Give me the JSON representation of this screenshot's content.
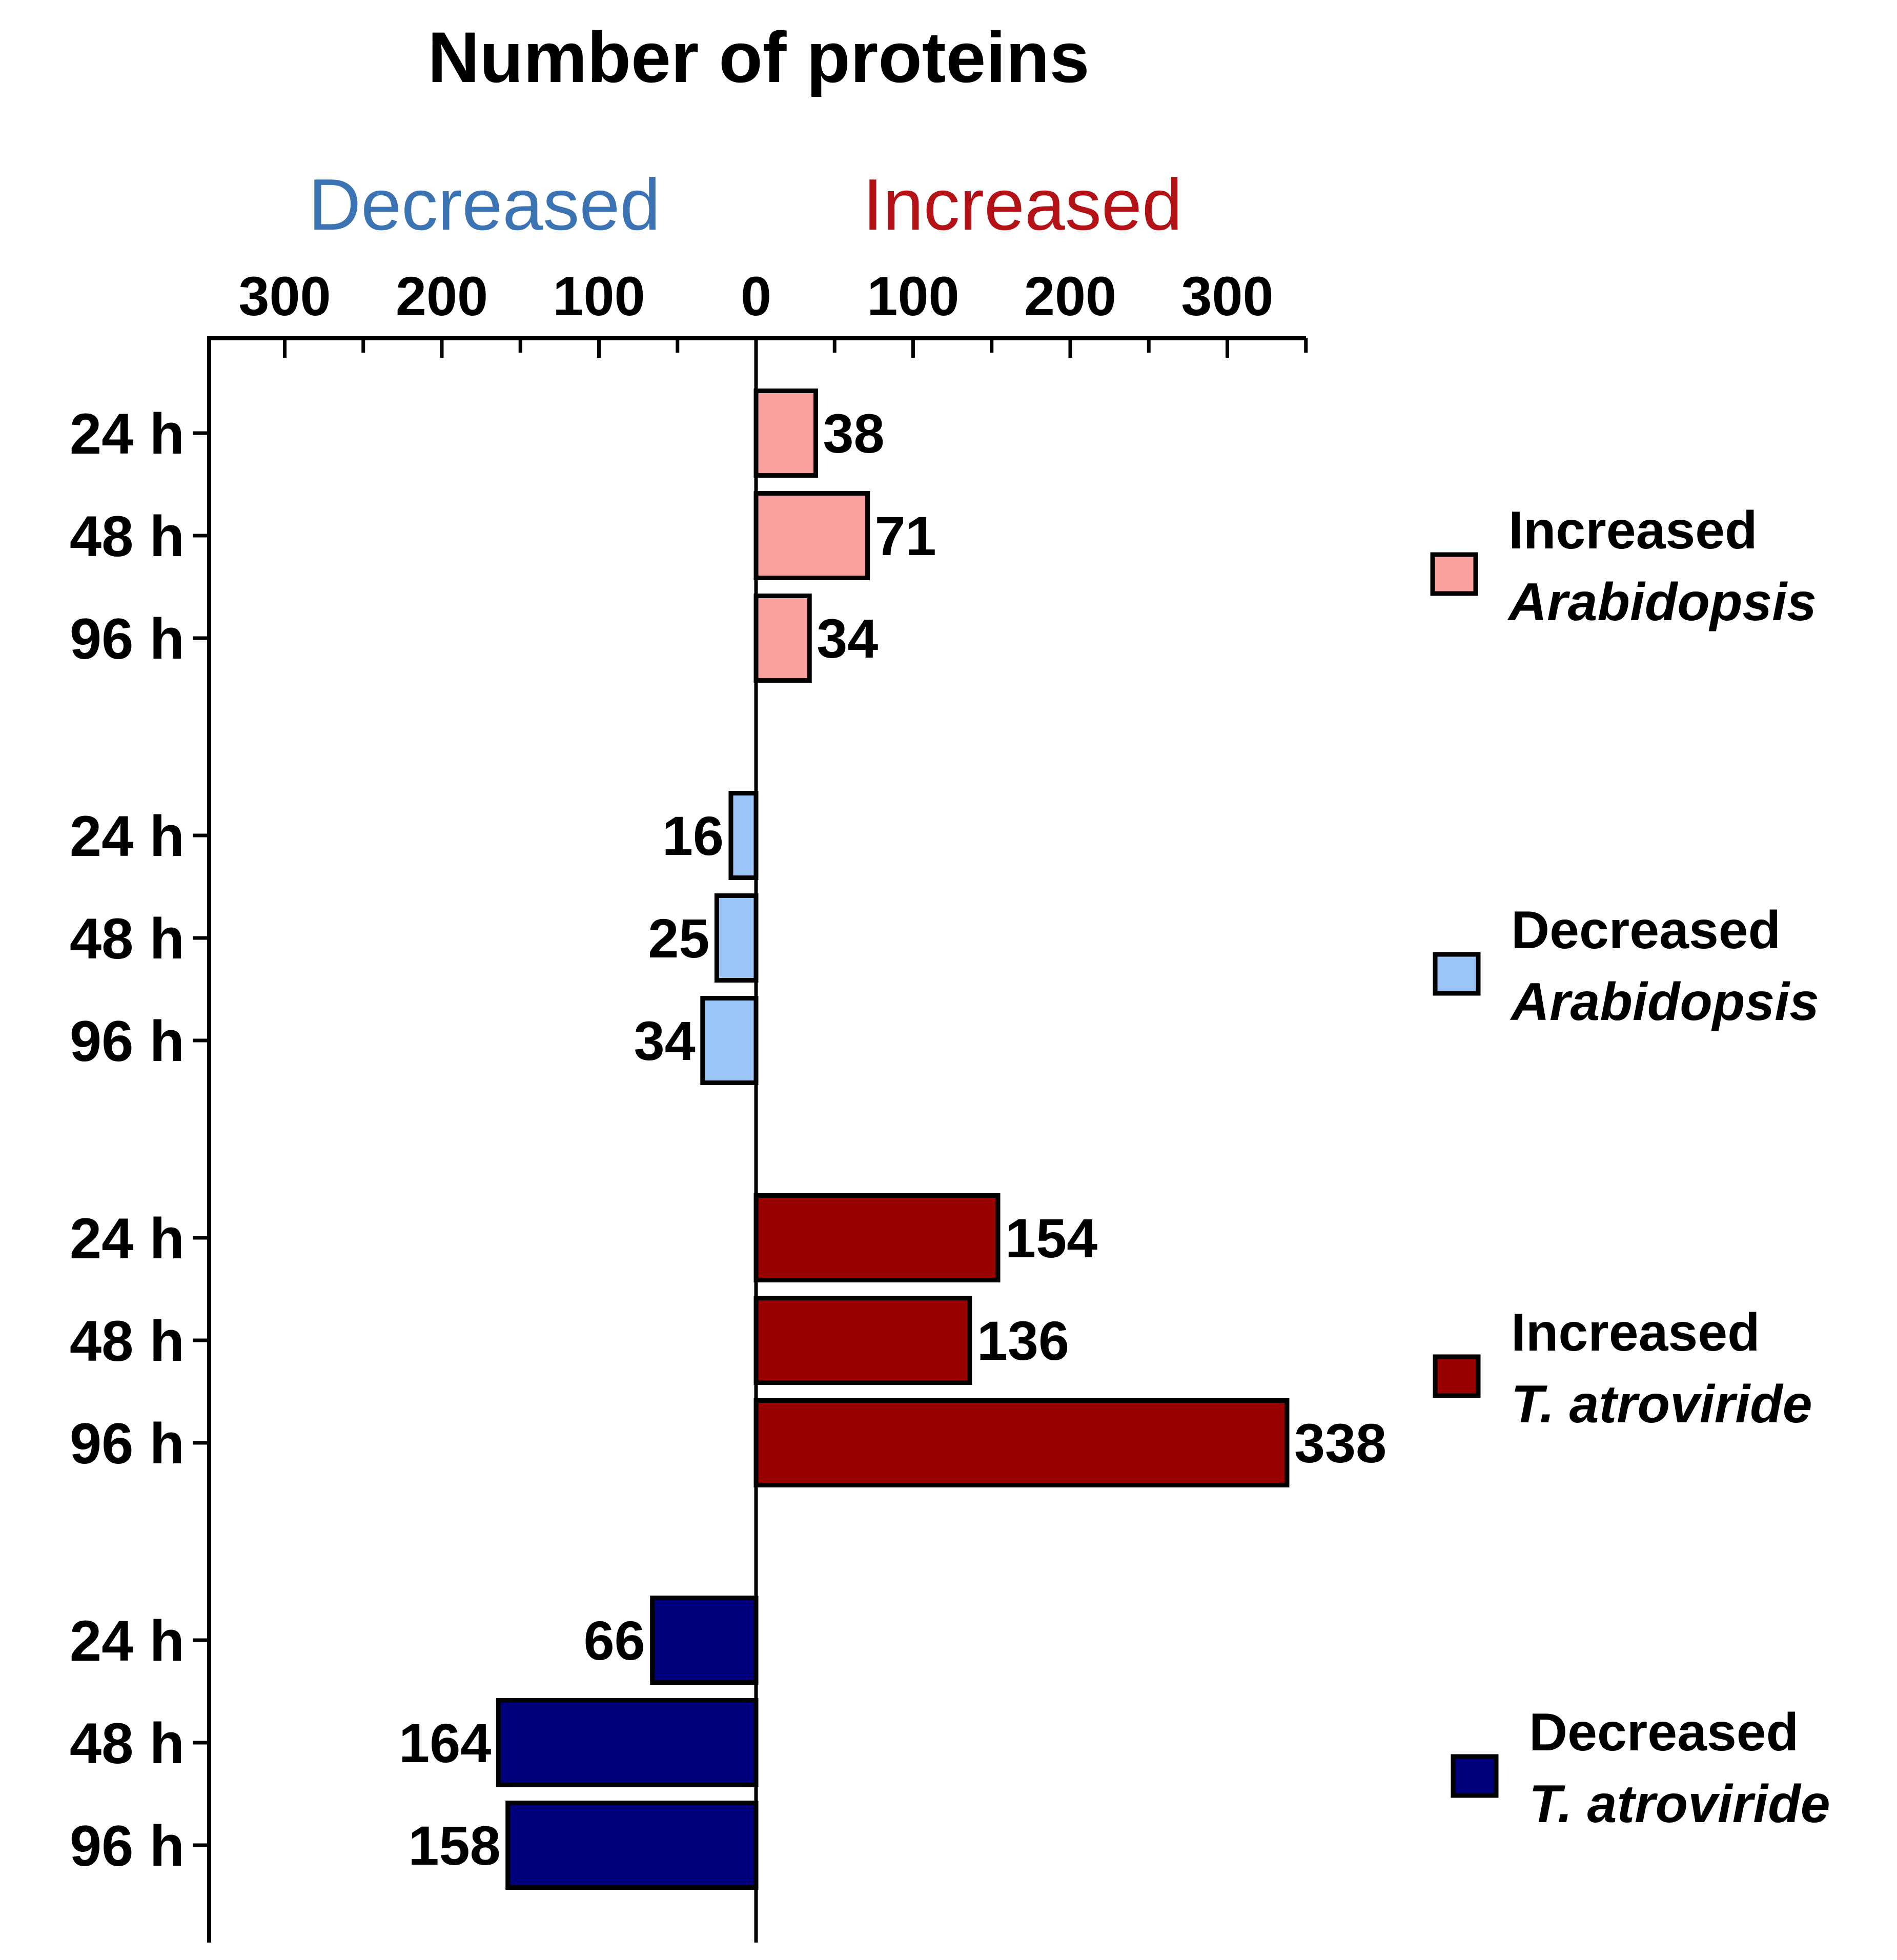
{
  "chart_data": {
    "type": "bar",
    "orientation": "horizontal-diverging",
    "title": "Number of proteins",
    "direction_labels": {
      "decreased": {
        "text": "Decreased",
        "color": "#3C73B2"
      },
      "increased": {
        "text": "Increased",
        "color": "#B31316"
      }
    },
    "x_axis": {
      "ticks": [
        -300,
        -200,
        -100,
        0,
        100,
        200,
        300
      ],
      "tick_labels": [
        "300",
        "200",
        "100",
        "0",
        "100",
        "200",
        "300"
      ],
      "range": [
        -350,
        350
      ],
      "position": "top"
    },
    "categories": [
      "24 h",
      "48 h",
      "96 h"
    ],
    "series": [
      {
        "name": "Increased Arabidopsis",
        "legend_line1": "Increased",
        "legend_line2": "Arabidopsis",
        "color": "#F9A19E",
        "values": [
          38,
          71,
          34
        ],
        "signed_values": [
          38,
          71,
          34
        ]
      },
      {
        "name": "Decreased Arabidopsis",
        "legend_line1": "Decreased",
        "legend_line2": "Arabidopsis",
        "color": "#9CC5F7",
        "values": [
          16,
          25,
          34
        ],
        "signed_values": [
          -16,
          -25,
          -34
        ]
      },
      {
        "name": "Increased T. atroviride",
        "legend_line1": "Increased",
        "legend_line2": "T. atroviride",
        "color": "#9A0000",
        "values": [
          154,
          136,
          338
        ],
        "signed_values": [
          154,
          136,
          338
        ]
      },
      {
        "name": "Decreased T. atroviride",
        "legend_line1": "Decreased",
        "legend_line2": "T. atroviride",
        "color": "#00007C",
        "values": [
          66,
          164,
          158
        ],
        "signed_values": [
          -66,
          -164,
          -158
        ]
      }
    ],
    "legend_position": "right"
  }
}
